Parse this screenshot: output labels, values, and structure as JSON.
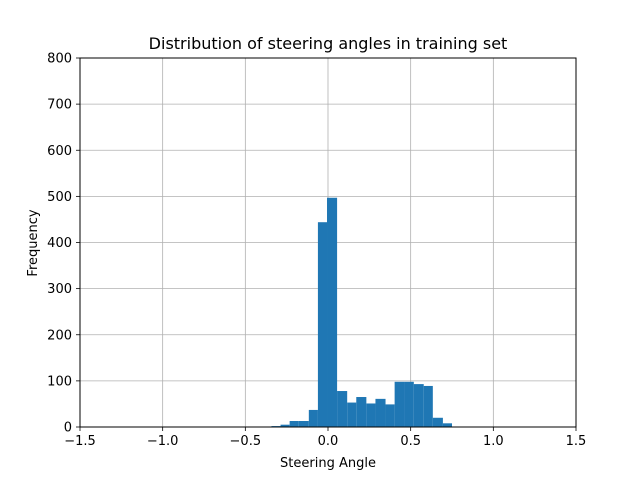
{
  "chart_data": {
    "type": "bar",
    "title": "Distribution of steering angles in training set",
    "xlabel": "Steering Angle",
    "ylabel": "Frequency",
    "xlim": [
      -1.5,
      1.5
    ],
    "ylim": [
      0,
      800
    ],
    "xticks": [
      "−1.5",
      "−1.0",
      "−0.5",
      "0.0",
      "0.5",
      "1.0",
      "1.5"
    ],
    "xtick_values": [
      -1.5,
      -1.0,
      -0.5,
      0.0,
      0.5,
      1.0,
      1.5
    ],
    "yticks": [
      "0",
      "100",
      "200",
      "300",
      "400",
      "500",
      "600",
      "700",
      "800"
    ],
    "ytick_values": [
      0,
      100,
      200,
      300,
      400,
      500,
      600,
      700,
      800
    ],
    "grid": true,
    "bar_color": "#1f77b4",
    "bins": [
      {
        "x0": -0.342,
        "x1": -0.287,
        "value": 2
      },
      {
        "x0": -0.287,
        "x1": -0.232,
        "value": 5
      },
      {
        "x0": -0.232,
        "x1": -0.177,
        "value": 13
      },
      {
        "x0": -0.177,
        "x1": -0.116,
        "value": 13
      },
      {
        "x0": -0.116,
        "x1": -0.061,
        "value": 37
      },
      {
        "x0": -0.061,
        "x1": -0.006,
        "value": 444
      },
      {
        "x0": -0.006,
        "x1": 0.055,
        "value": 497
      },
      {
        "x0": 0.055,
        "x1": 0.116,
        "value": 78
      },
      {
        "x0": 0.116,
        "x1": 0.171,
        "value": 53
      },
      {
        "x0": 0.171,
        "x1": 0.232,
        "value": 65
      },
      {
        "x0": 0.232,
        "x1": 0.287,
        "value": 51
      },
      {
        "x0": 0.287,
        "x1": 0.348,
        "value": 61
      },
      {
        "x0": 0.348,
        "x1": 0.403,
        "value": 49
      },
      {
        "x0": 0.403,
        "x1": 0.463,
        "value": 98
      },
      {
        "x0": 0.463,
        "x1": 0.519,
        "value": 98
      },
      {
        "x0": 0.519,
        "x1": 0.579,
        "value": 93
      },
      {
        "x0": 0.579,
        "x1": 0.634,
        "value": 89
      },
      {
        "x0": 0.634,
        "x1": 0.695,
        "value": 20
      },
      {
        "x0": 0.695,
        "x1": 0.75,
        "value": 8
      }
    ]
  }
}
